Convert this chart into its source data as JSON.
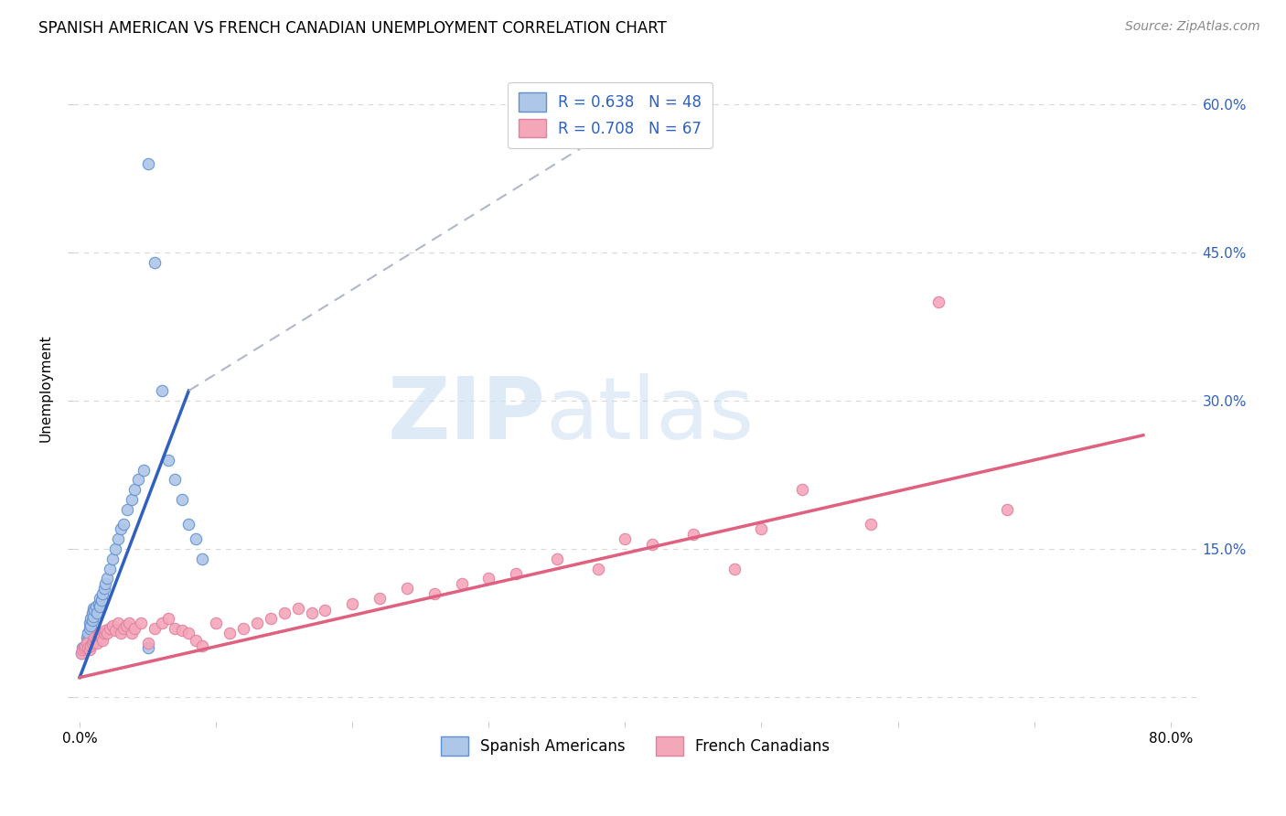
{
  "title": "SPANISH AMERICAN VS FRENCH CANADIAN UNEMPLOYMENT CORRELATION CHART",
  "source": "Source: ZipAtlas.com",
  "ylabel": "Unemployment",
  "xlim": [
    -0.005,
    0.82
  ],
  "ylim": [
    -0.025,
    0.65
  ],
  "watermark_zip": "ZIP",
  "watermark_atlas": "atlas",
  "legend_r1": "R = 0.638   N = 48",
  "legend_r2": "R = 0.708   N = 67",
  "legend_color1": "#aec6e8",
  "legend_color2": "#f4a7b9",
  "blue_line_color": "#3060c0",
  "pink_line_color": "#e06080",
  "dashed_line_color": "#b0b8c8",
  "scatter_blue_color": "#aec6e8",
  "scatter_pink_color": "#f4a7b9",
  "scatter_blue_edge": "#6090d0",
  "scatter_pink_edge": "#e080a0",
  "grid_color": "#d8d8d8",
  "background_color": "#ffffff",
  "title_fontsize": 12,
  "axis_label_fontsize": 11,
  "tick_fontsize": 11,
  "source_fontsize": 10,
  "blue_x": [
    0.001,
    0.002,
    0.003,
    0.004,
    0.005,
    0.005,
    0.006,
    0.006,
    0.007,
    0.007,
    0.008,
    0.008,
    0.009,
    0.009,
    0.01,
    0.01,
    0.011,
    0.012,
    0.013,
    0.014,
    0.015,
    0.015,
    0.016,
    0.017,
    0.018,
    0.019,
    0.02,
    0.022,
    0.024,
    0.026,
    0.028,
    0.03,
    0.032,
    0.035,
    0.038,
    0.04,
    0.043,
    0.047,
    0.05,
    0.055,
    0.06,
    0.065,
    0.07,
    0.075,
    0.08,
    0.085,
    0.09,
    0.05
  ],
  "blue_y": [
    0.045,
    0.05,
    0.048,
    0.052,
    0.055,
    0.06,
    0.058,
    0.065,
    0.07,
    0.075,
    0.072,
    0.08,
    0.078,
    0.085,
    0.09,
    0.082,
    0.088,
    0.092,
    0.085,
    0.095,
    0.1,
    0.092,
    0.098,
    0.105,
    0.11,
    0.115,
    0.12,
    0.13,
    0.14,
    0.15,
    0.16,
    0.17,
    0.175,
    0.19,
    0.2,
    0.21,
    0.22,
    0.23,
    0.54,
    0.44,
    0.31,
    0.24,
    0.22,
    0.2,
    0.175,
    0.16,
    0.14,
    0.05
  ],
  "pink_x": [
    0.001,
    0.002,
    0.003,
    0.004,
    0.005,
    0.006,
    0.007,
    0.008,
    0.009,
    0.01,
    0.011,
    0.012,
    0.013,
    0.014,
    0.015,
    0.016,
    0.017,
    0.018,
    0.019,
    0.02,
    0.022,
    0.024,
    0.026,
    0.028,
    0.03,
    0.032,
    0.034,
    0.036,
    0.038,
    0.04,
    0.045,
    0.05,
    0.055,
    0.06,
    0.065,
    0.07,
    0.075,
    0.08,
    0.085,
    0.09,
    0.1,
    0.11,
    0.12,
    0.13,
    0.14,
    0.15,
    0.16,
    0.17,
    0.18,
    0.2,
    0.22,
    0.24,
    0.26,
    0.28,
    0.3,
    0.32,
    0.35,
    0.38,
    0.4,
    0.42,
    0.45,
    0.48,
    0.5,
    0.53,
    0.58,
    0.63,
    0.68
  ],
  "pink_y": [
    0.045,
    0.048,
    0.05,
    0.052,
    0.055,
    0.05,
    0.048,
    0.052,
    0.055,
    0.058,
    0.06,
    0.058,
    0.055,
    0.062,
    0.065,
    0.06,
    0.058,
    0.065,
    0.068,
    0.065,
    0.07,
    0.072,
    0.068,
    0.075,
    0.065,
    0.07,
    0.072,
    0.075,
    0.065,
    0.07,
    0.075,
    0.055,
    0.07,
    0.075,
    0.08,
    0.07,
    0.068,
    0.065,
    0.058,
    0.052,
    0.075,
    0.065,
    0.07,
    0.075,
    0.08,
    0.085,
    0.09,
    0.085,
    0.088,
    0.095,
    0.1,
    0.11,
    0.105,
    0.115,
    0.12,
    0.125,
    0.14,
    0.13,
    0.16,
    0.155,
    0.165,
    0.13,
    0.17,
    0.21,
    0.175,
    0.4,
    0.19
  ],
  "blue_line_x": [
    0.0,
    0.08
  ],
  "blue_line_y": [
    0.02,
    0.31
  ],
  "dash_line_x": [
    0.08,
    0.42
  ],
  "dash_line_y": [
    0.31,
    0.6
  ],
  "pink_line_x": [
    0.0,
    0.78
  ],
  "pink_line_y": [
    0.02,
    0.265
  ]
}
